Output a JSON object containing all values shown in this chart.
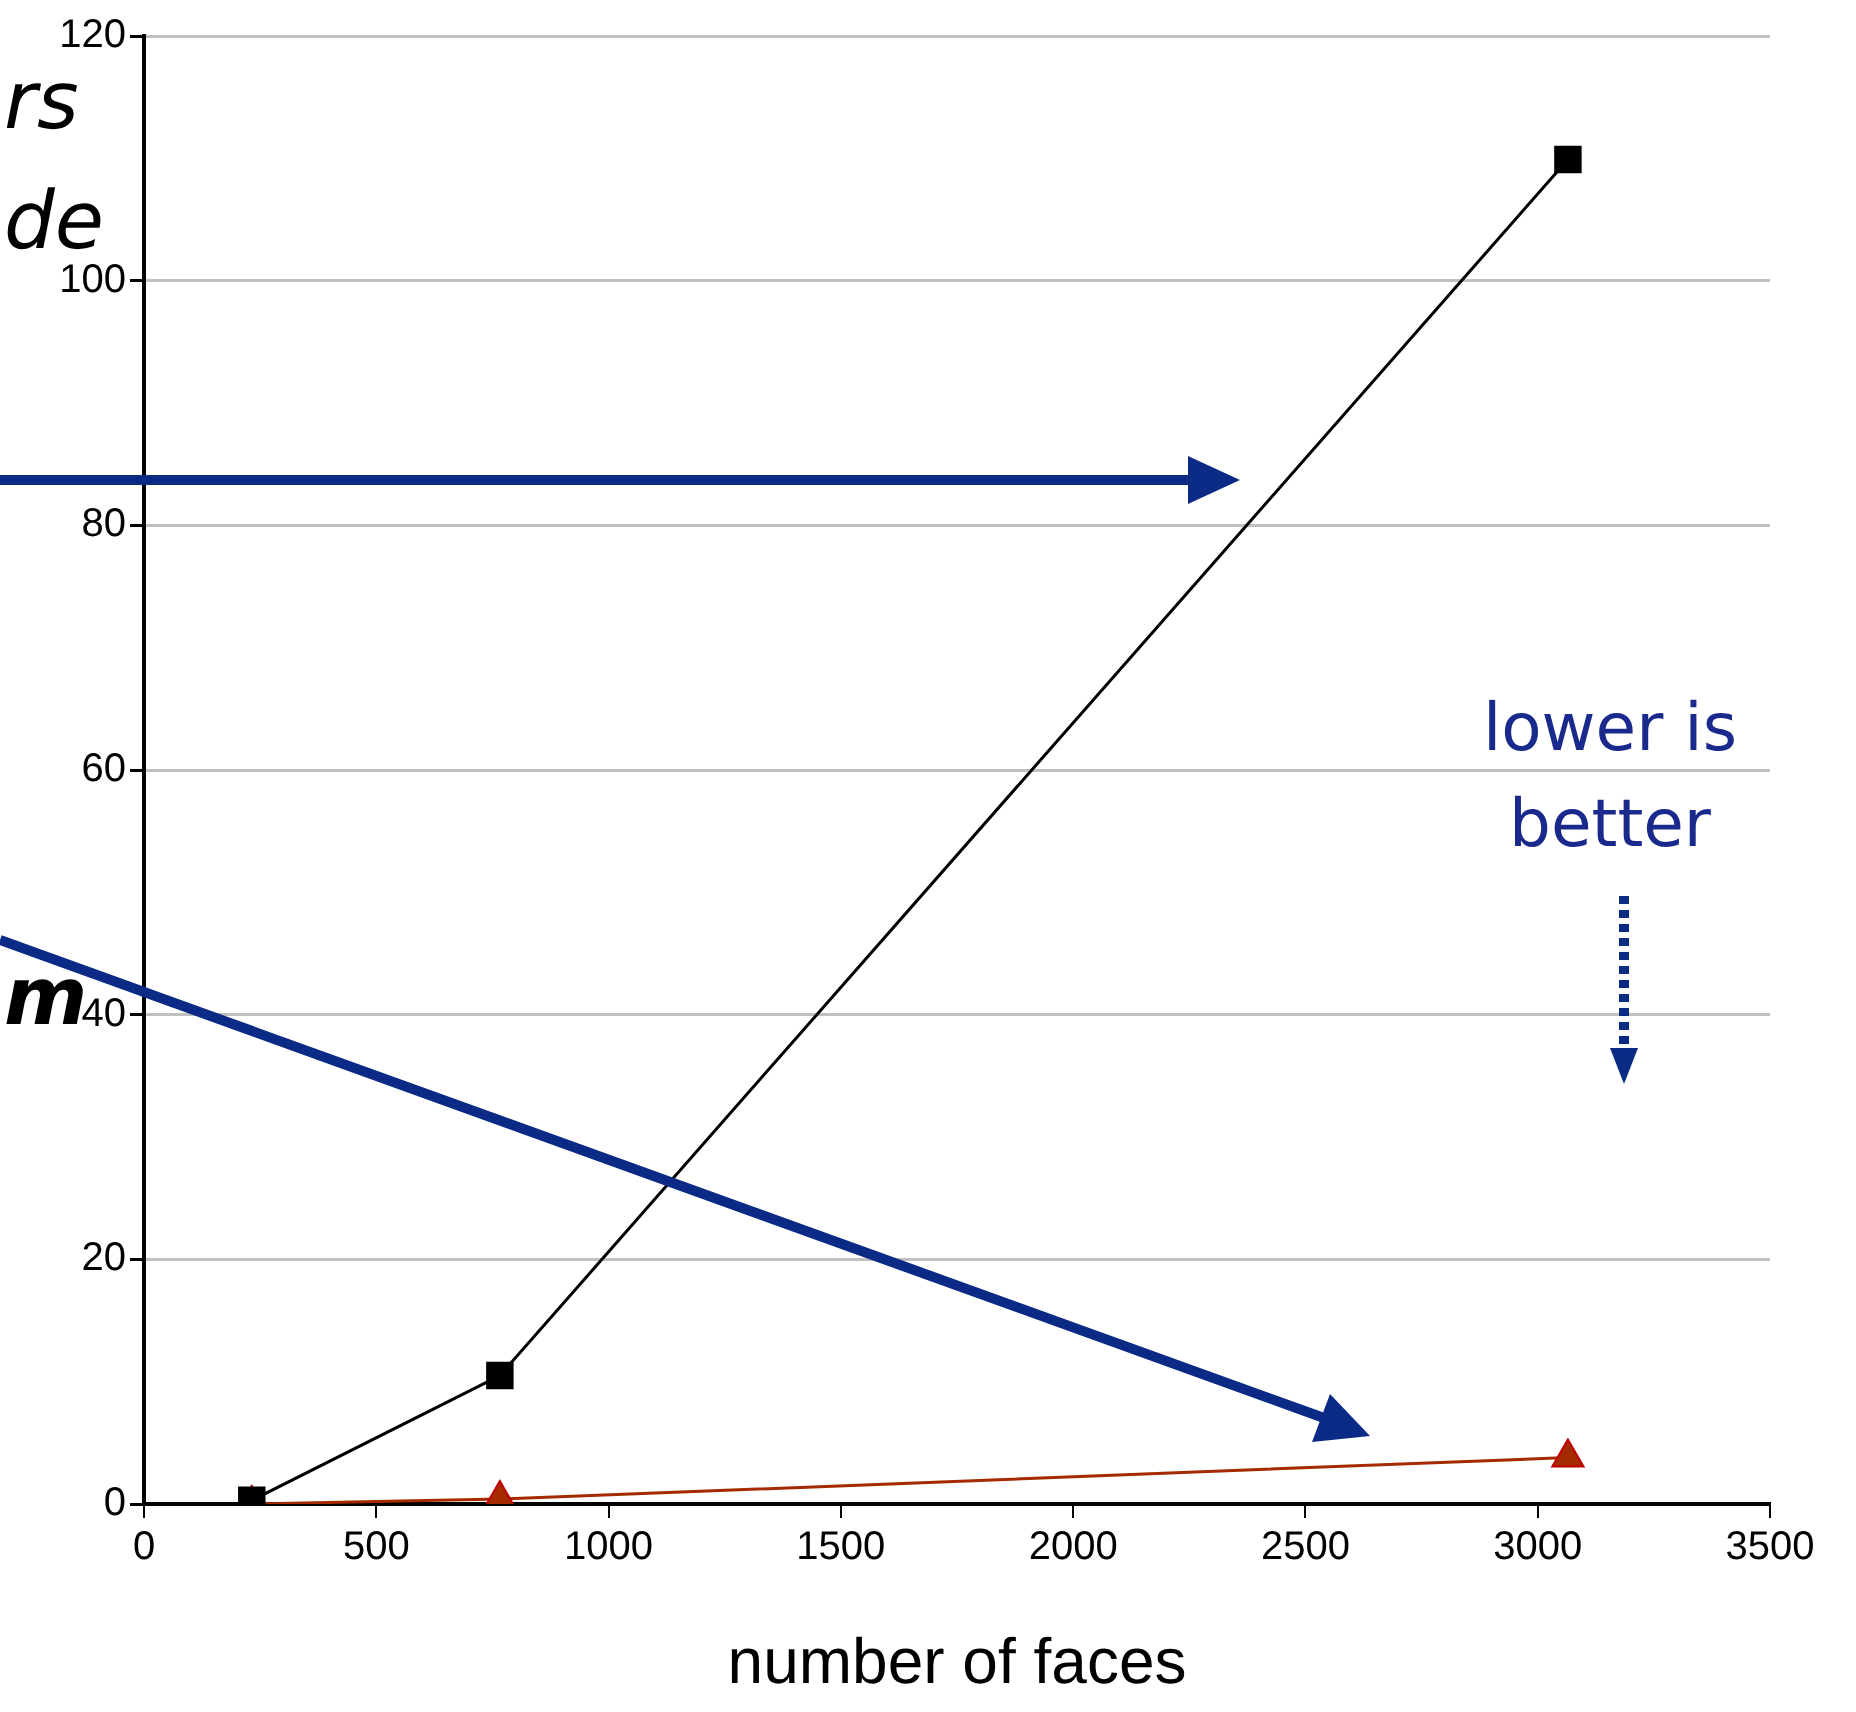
{
  "chart_data": {
    "type": "line",
    "xlabel": "number of faces",
    "xlim": [
      0,
      3500
    ],
    "xticks": [
      0,
      500,
      1000,
      1500,
      2000,
      2500,
      3000,
      3500
    ],
    "ylim": [
      0,
      120
    ],
    "yticks": [
      0,
      20,
      40,
      60,
      80,
      100,
      120
    ],
    "grid": "y",
    "legend": false,
    "line_style": "solid",
    "series": [
      {
        "color": "#000000",
        "marker": "square",
        "x": [
          232,
          766,
          3065
        ],
        "values": [
          0.3,
          10.5,
          109.9
        ]
      },
      {
        "color": "#a52a00",
        "marker": "triangle",
        "x": [
          232,
          766,
          3065
        ],
        "values": [
          0,
          0.4,
          3.8
        ]
      }
    ],
    "annotations": [
      "rs",
      "de",
      "m",
      "lower is better"
    ]
  }
}
